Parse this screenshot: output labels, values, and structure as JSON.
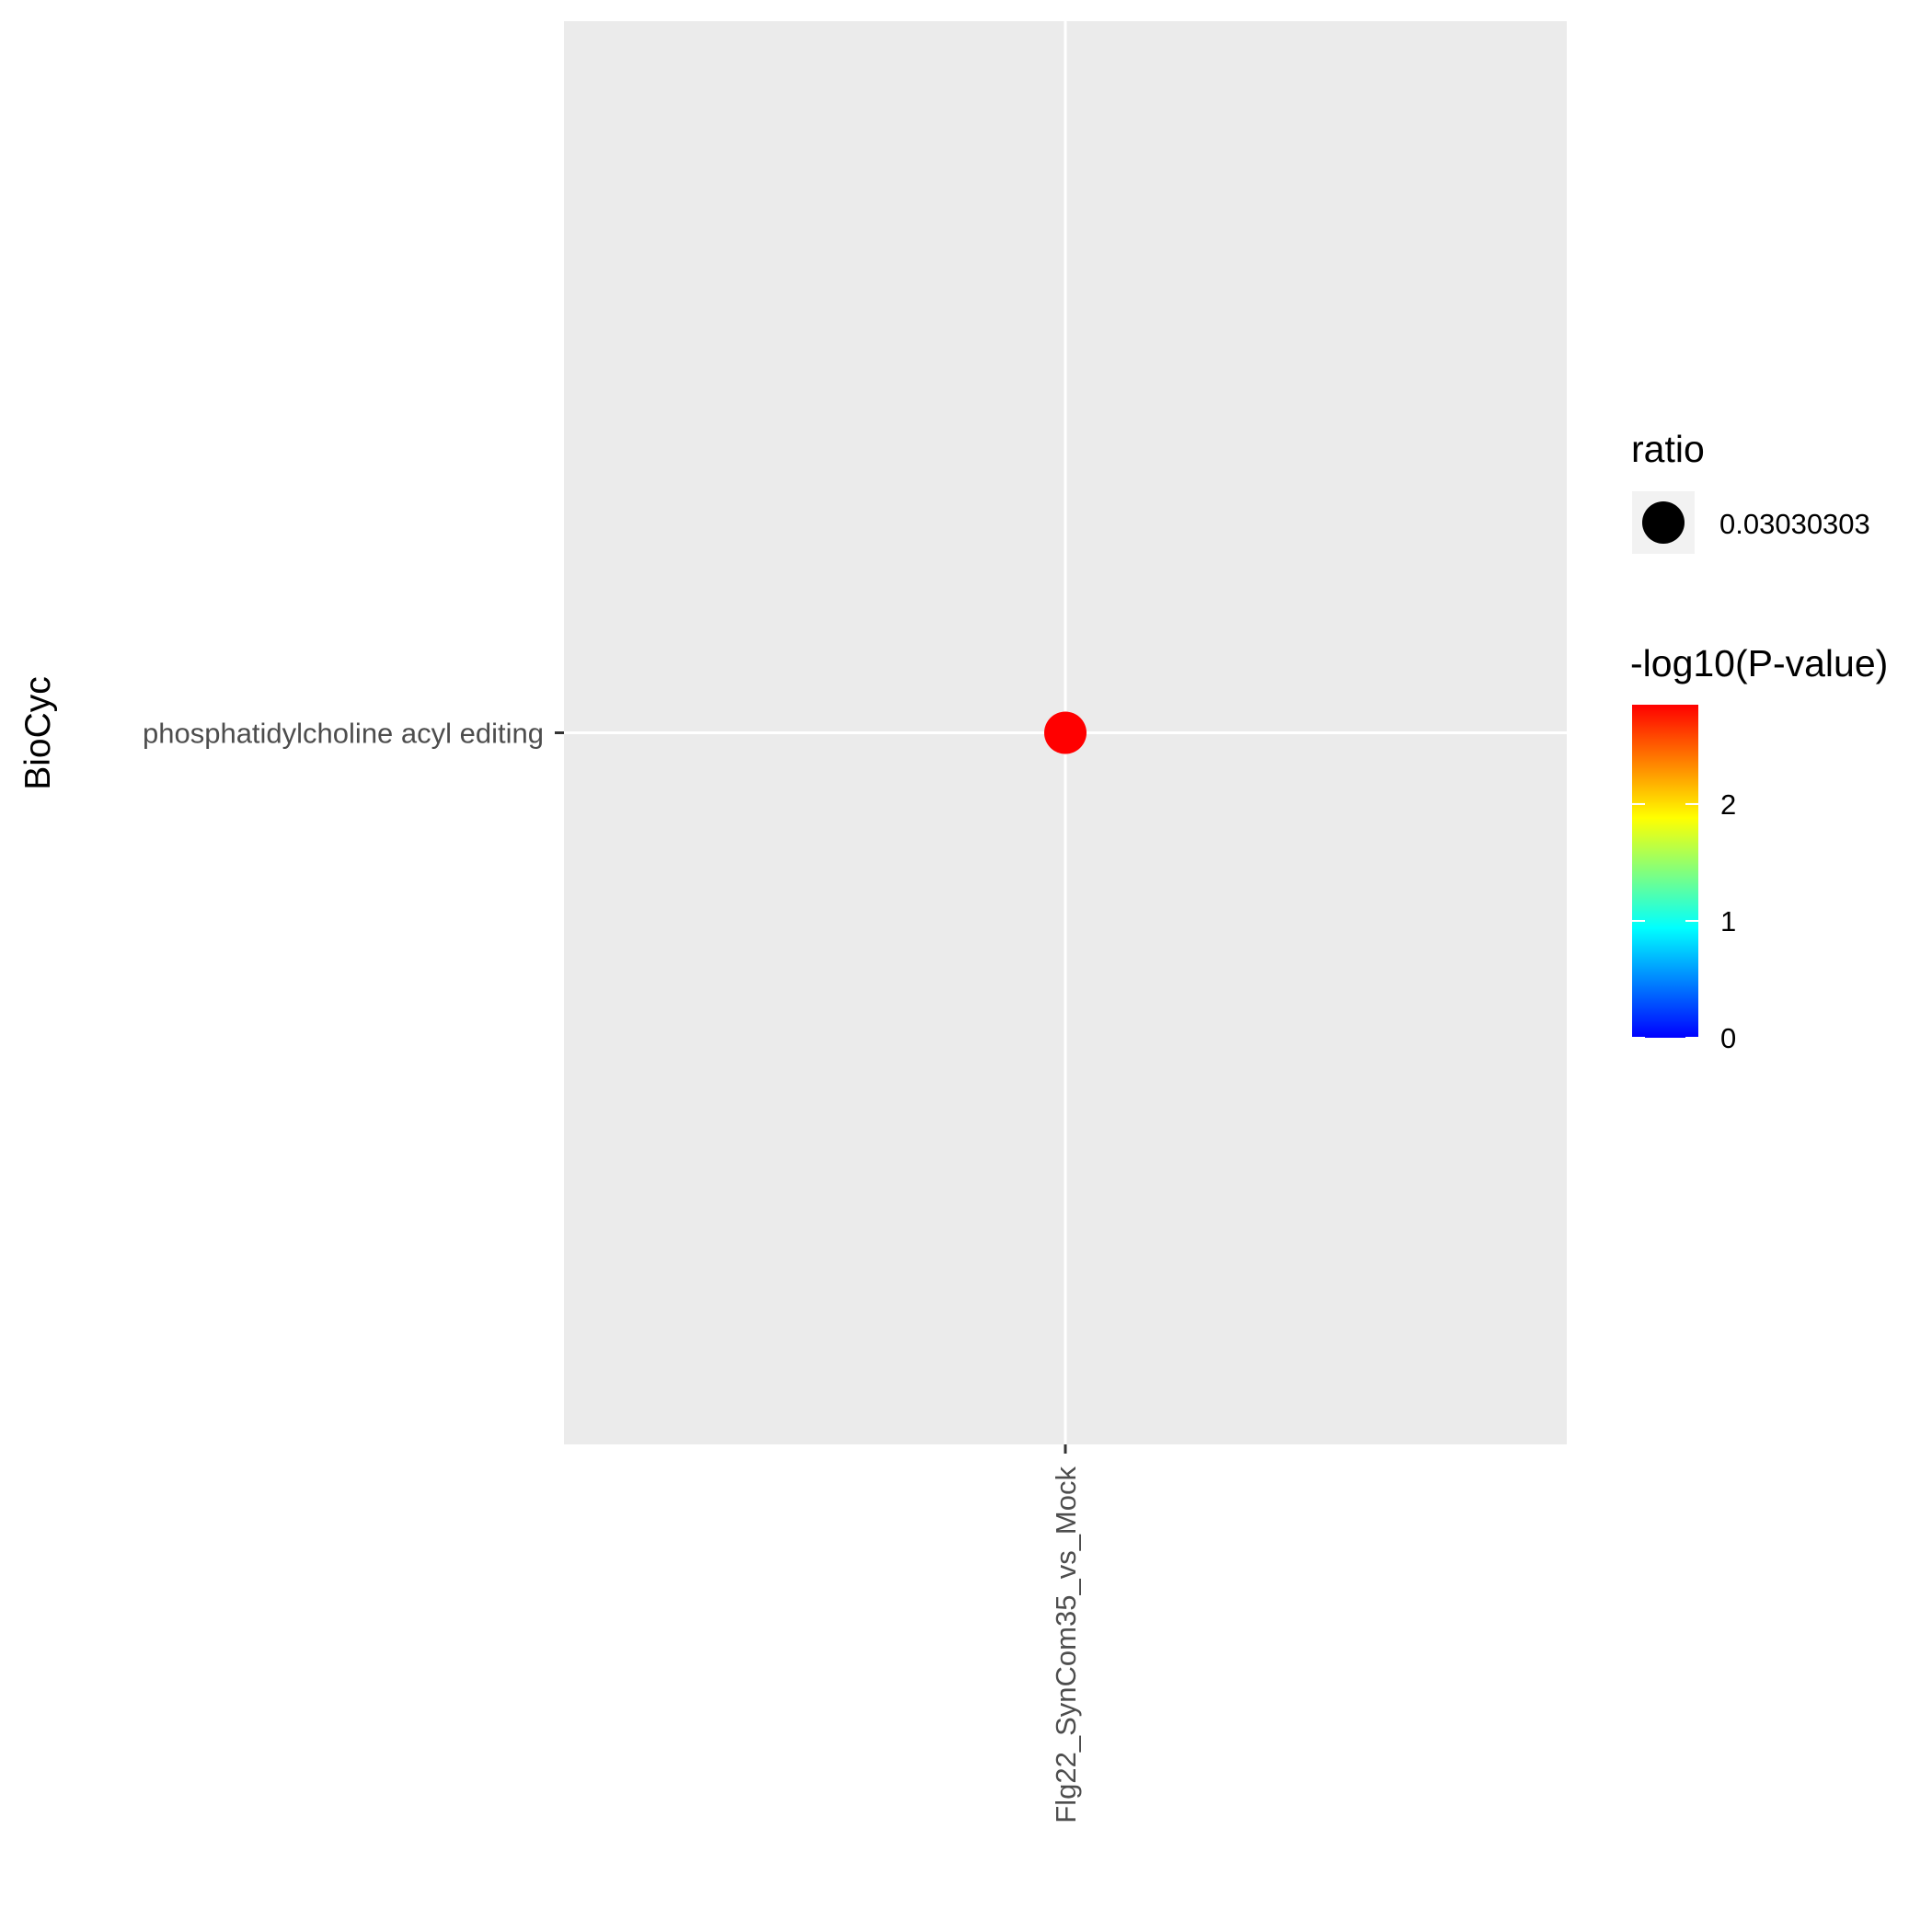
{
  "chart_data": {
    "type": "scatter",
    "xlabel": "",
    "ylabel": "BioCyc",
    "x_categories": [
      "Flg22_SynCom35_vs_Mock"
    ],
    "y_categories": [
      "phosphatidylcholine acyl editing"
    ],
    "points": [
      {
        "x": "Flg22_SynCom35_vs_Mock",
        "y": "phosphatidylcholine acyl editing",
        "ratio": 0.03030303,
        "neg_log10_pvalue": 2.85
      }
    ],
    "size_legend": {
      "title": "ratio",
      "entries": [
        {
          "label": "0.03030303",
          "value": 0.03030303
        }
      ]
    },
    "color_legend": {
      "title": "-log10(P-value)",
      "min": 0,
      "max": 2.85,
      "ticks": [
        0,
        1,
        2
      ],
      "tick_labels": [
        "0",
        "1",
        "2"
      ],
      "gradient": [
        "#0000ff",
        "#00ffff",
        "#ffff00",
        "#ff0000"
      ]
    },
    "panel_background": "#ebebeb",
    "grid": true,
    "legend_position": "right"
  }
}
